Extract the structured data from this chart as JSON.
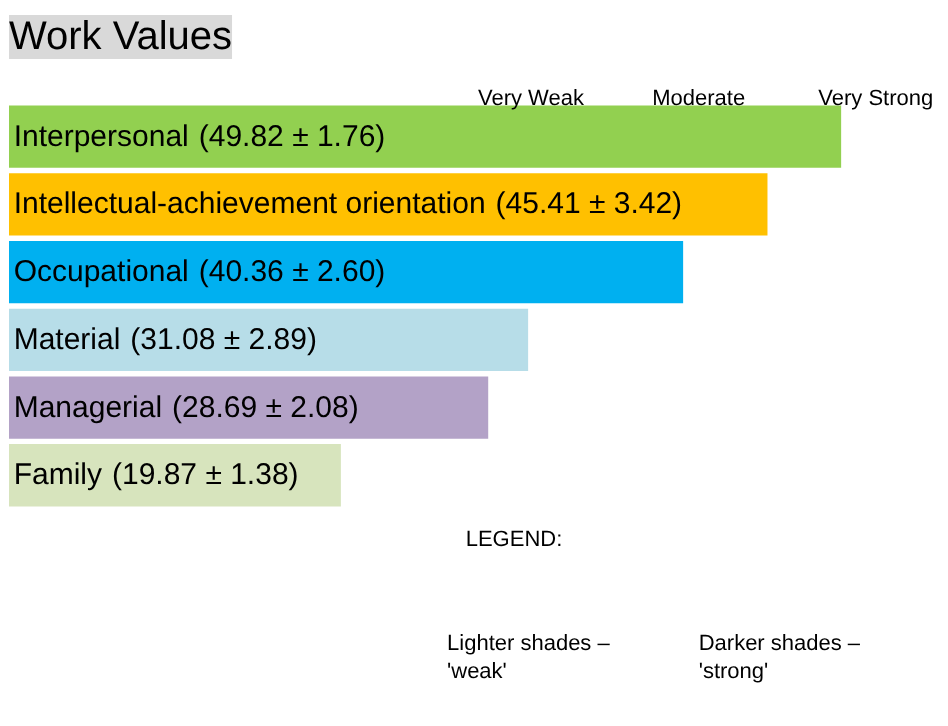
{
  "chart_data": {
    "type": "bar",
    "orientation": "horizontal",
    "title": "Work Values",
    "categories": [
      "Interpersonal",
      "Intellectual-achievement orientation",
      "Occupational",
      "Material",
      "Managerial",
      "Family"
    ],
    "values": [
      49.82,
      45.41,
      40.36,
      31.08,
      28.69,
      19.87
    ],
    "value_labels": [
      "(49.82 ± 1.76)",
      "(45.41 ± 3.42)",
      "(40.36 ± 2.60)",
      "(31.08 ± 2.89)",
      "(28.69 ± 2.08)",
      "(19.87 ± 1.38)"
    ],
    "colors": [
      "#92d050",
      "#ffc000",
      "#00b0f0",
      "#b7dde8",
      "#b3a2c7",
      "#d7e4bd"
    ],
    "annotations": [
      "Very Weak",
      "Moderate",
      "Very Strong",
      "LEGEND:",
      "Lighter shades –\n'weak'",
      "Darker shades –\n'strong'"
    ],
    "grid": false
  }
}
